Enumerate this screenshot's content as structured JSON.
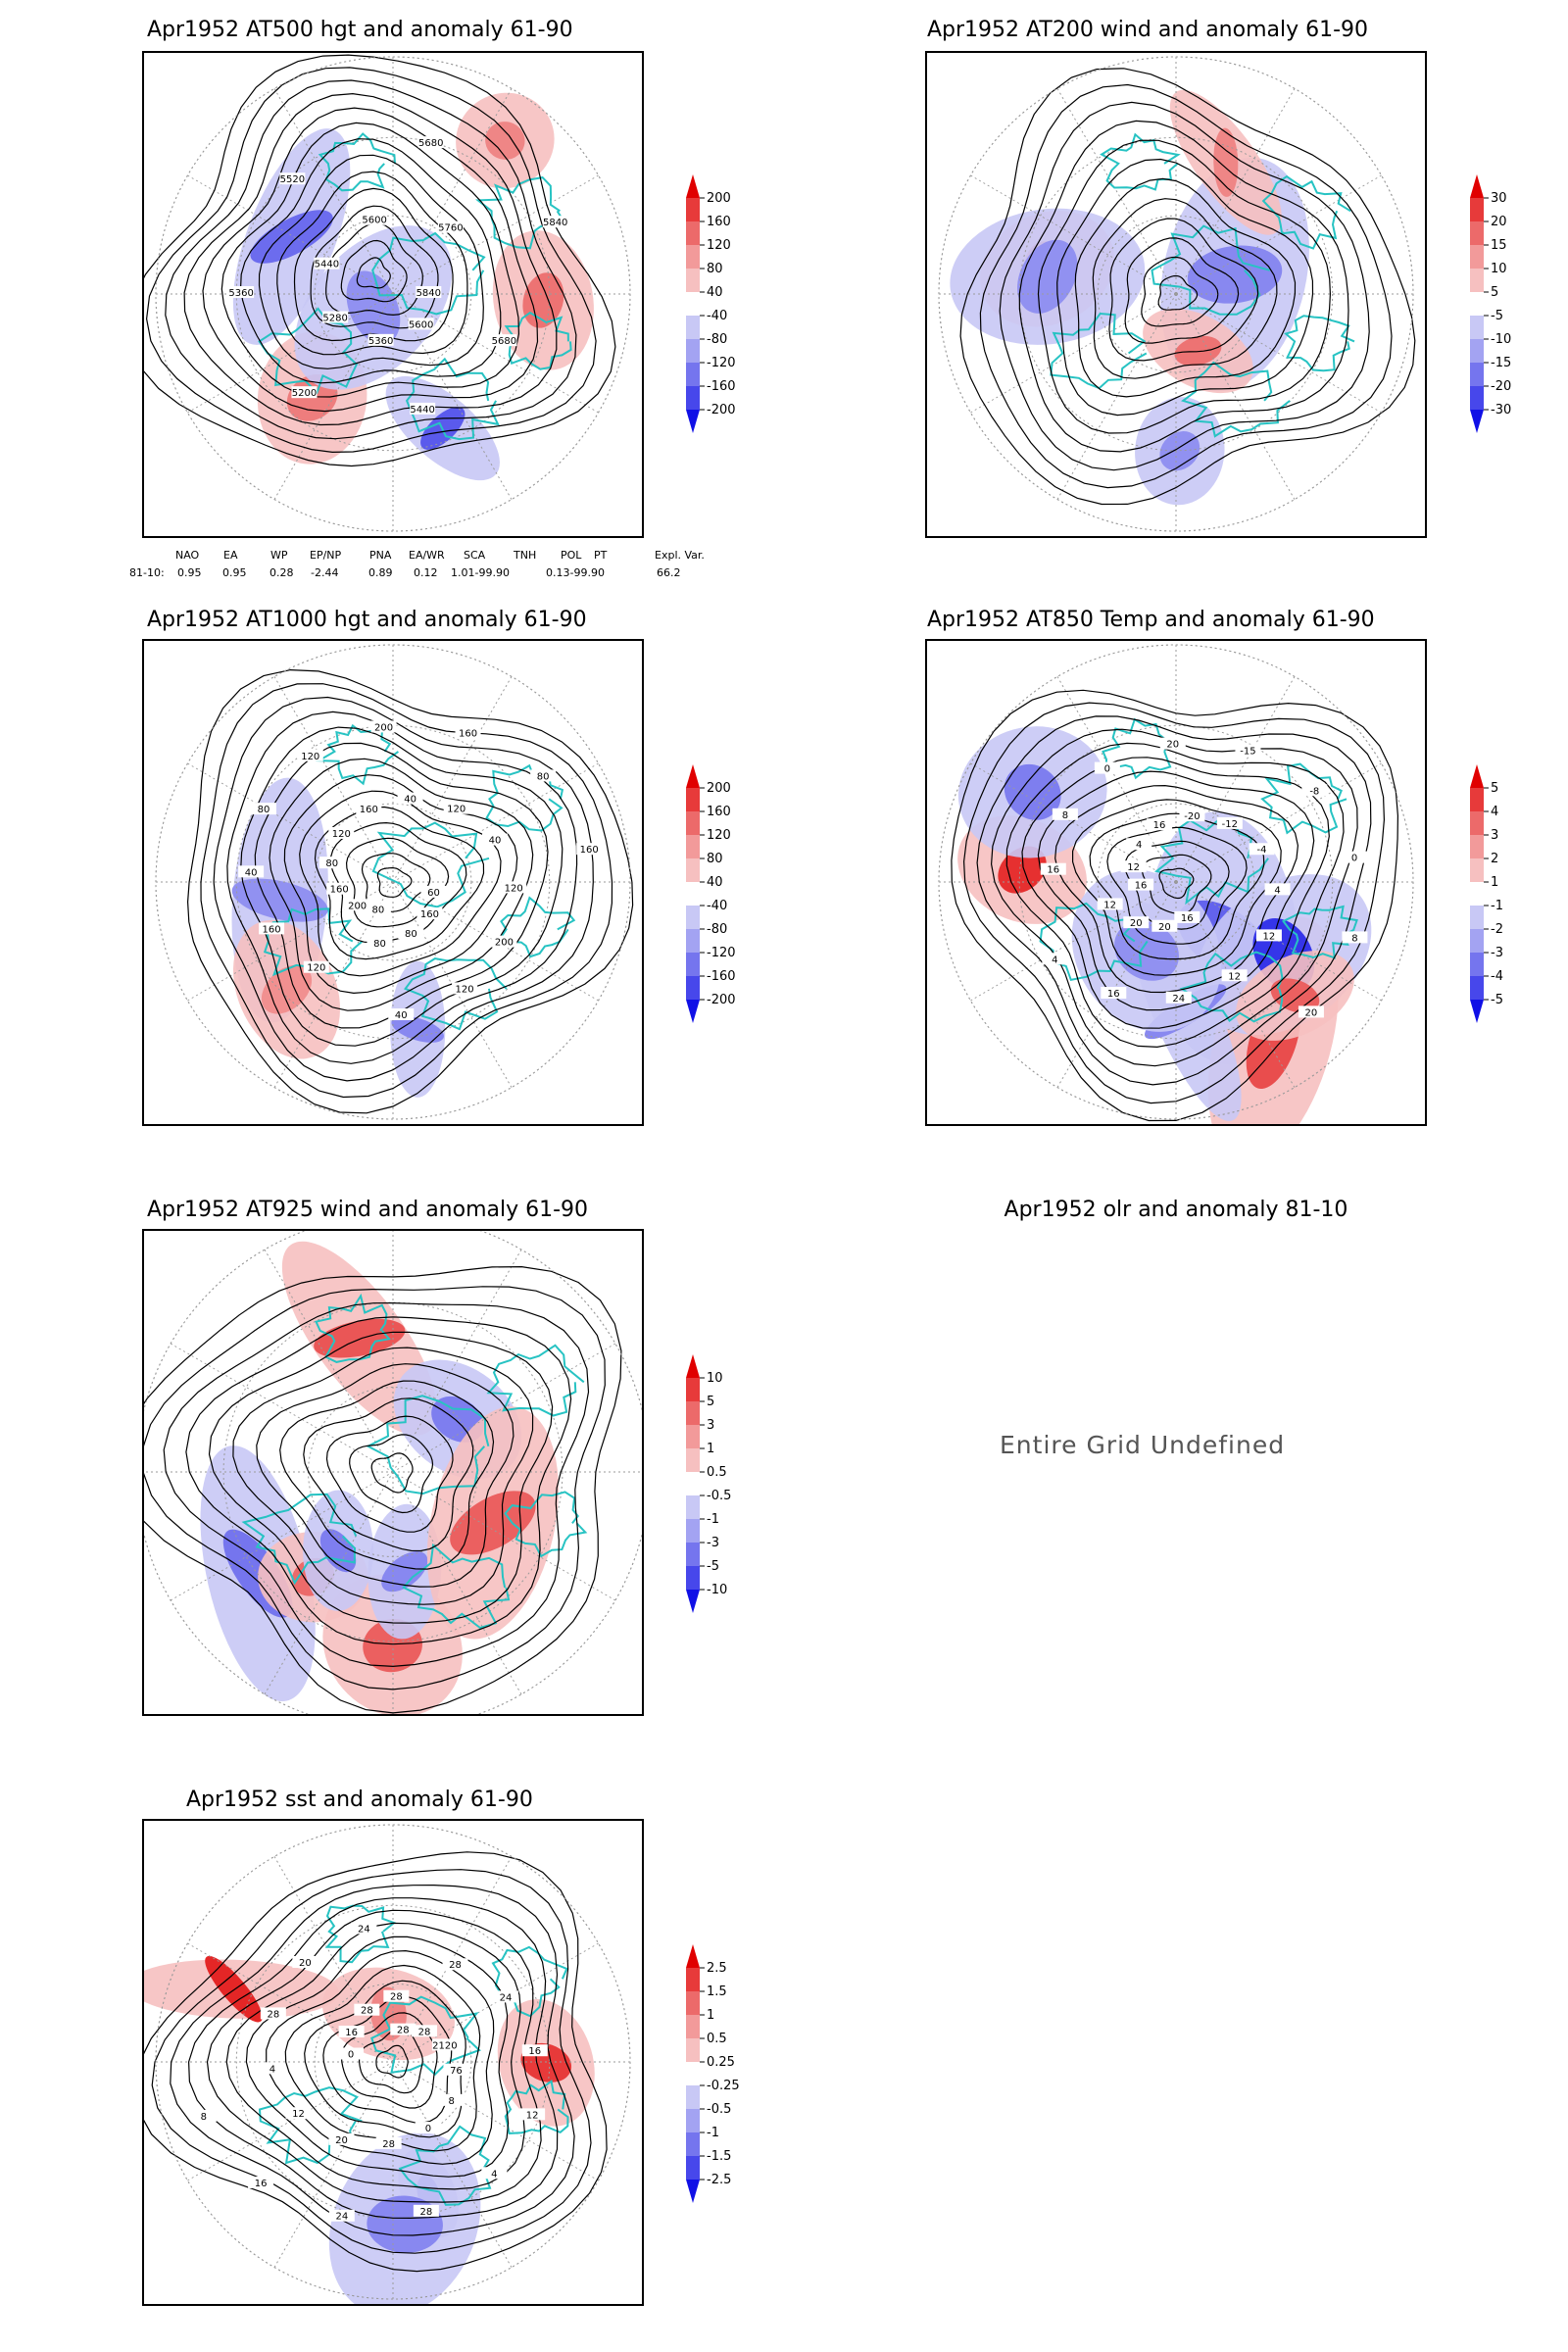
{
  "panels": [
    {
      "id": "p500",
      "title": "Apr1952 AT500 hgt and anomaly 61-90",
      "colorbar": [
        "200",
        "160",
        "120",
        "80",
        "40",
        "-40",
        "-80",
        "-120",
        "-160",
        "-200"
      ],
      "contour_labels": [
        "5840",
        "5680",
        "5600",
        "5440",
        "5360",
        "5200",
        "5280",
        "5360",
        "5440",
        "5520",
        "5600",
        "5680",
        "5760",
        "5840"
      ],
      "anomaly_blobs": [
        {
          "kind": "neg",
          "strength": 0.6
        },
        {
          "kind": "neg",
          "strength": 0.5
        },
        {
          "kind": "pos",
          "strength": 0.4
        },
        {
          "kind": "pos",
          "strength": 0.35
        },
        {
          "kind": "neg",
          "strength": 0.3
        },
        {
          "kind": "pos",
          "strength": 0.3
        }
      ]
    },
    {
      "id": "p200",
      "title": "Apr1952 AT200 wind and anomaly 61-90",
      "colorbar": [
        "30",
        "20",
        "15",
        "10",
        "5",
        "-5",
        "-10",
        "-15",
        "-20",
        "-30"
      ],
      "contour_labels": [],
      "anomaly_blobs": [
        {
          "kind": "pos",
          "strength": 0.45
        },
        {
          "kind": "neg",
          "strength": 0.35
        },
        {
          "kind": "pos",
          "strength": 0.4
        },
        {
          "kind": "neg",
          "strength": 0.3
        },
        {
          "kind": "pos",
          "strength": 0.3
        },
        {
          "kind": "neg",
          "strength": 0.3
        }
      ]
    },
    {
      "id": "p1000",
      "title": "Apr1952 AT1000 hgt and anomaly 61-90",
      "colorbar": [
        "200",
        "160",
        "120",
        "80",
        "40",
        "-40",
        "-80",
        "-120",
        "-160",
        "-200"
      ],
      "contour_labels": [
        "80",
        "120",
        "200",
        "160",
        "160",
        "40",
        "80",
        "80",
        "120",
        "120",
        "160",
        "200",
        "40",
        "160",
        "120",
        "80",
        "40",
        "160",
        "120",
        "60",
        "200",
        "160",
        "120",
        "80",
        "40",
        "80"
      ],
      "anomaly_blobs": [
        {
          "kind": "neg",
          "strength": 0.35
        },
        {
          "kind": "neg",
          "strength": 0.3
        },
        {
          "kind": "pos",
          "strength": 0.25
        }
      ]
    },
    {
      "id": "p850",
      "title": "Apr1952 AT850 Temp and anomaly 61-90",
      "colorbar": [
        "5",
        "4",
        "3",
        "2",
        "1",
        "-1",
        "-2",
        "-3",
        "-4",
        "-5"
      ],
      "contour_labels": [
        "16",
        "16",
        "12",
        "8",
        "4",
        "0",
        "16",
        "20",
        "-20",
        "-15",
        "-12",
        "-8",
        "-4",
        "0",
        "4",
        "8",
        "12",
        "20",
        "12",
        "16",
        "24",
        "20",
        "16",
        "20",
        "4",
        "12"
      ],
      "anomaly_blobs": [
        {
          "kind": "pos",
          "strength": 0.75
        },
        {
          "kind": "neg",
          "strength": 0.55
        },
        {
          "kind": "pos",
          "strength": 0.6
        },
        {
          "kind": "neg",
          "strength": 0.8
        },
        {
          "kind": "neg",
          "strength": 0.4
        },
        {
          "kind": "pos",
          "strength": 0.5
        },
        {
          "kind": "neg",
          "strength": 0.35
        },
        {
          "kind": "neg",
          "strength": 0.3
        }
      ]
    },
    {
      "id": "p925",
      "title": "Apr1952 AT925 wind and anomaly 61-90",
      "colorbar": [
        "10",
        "5",
        "3",
        "1",
        "0.5",
        "-0.5",
        "-1",
        "-3",
        "-5",
        "-10"
      ],
      "contour_labels": [],
      "anomaly_blobs": [
        {
          "kind": "pos",
          "strength": 0.5
        },
        {
          "kind": "neg",
          "strength": 0.45
        },
        {
          "kind": "pos",
          "strength": 0.55
        },
        {
          "kind": "neg",
          "strength": 0.4
        },
        {
          "kind": "pos",
          "strength": 0.45
        },
        {
          "kind": "neg",
          "strength": 0.35
        },
        {
          "kind": "pos",
          "strength": 0.5
        },
        {
          "kind": "neg",
          "strength": 0.4
        }
      ]
    },
    {
      "id": "psst",
      "title": "Apr1952 sst and anomaly 61-90",
      "colorbar": [
        "2.5",
        "1.5",
        "1",
        "0.5",
        "0.25",
        "-0.25",
        "-0.5",
        "-1",
        "-1.5",
        "-2.5"
      ],
      "contour_labels": [
        "28",
        "28",
        "28",
        "24",
        "2120",
        "16",
        "76",
        "12",
        "8",
        "4",
        "0",
        "28",
        "28",
        "24",
        "20",
        "16",
        "12",
        "8",
        "4",
        "0",
        "28",
        "16",
        "20",
        "28",
        "24",
        "28"
      ],
      "anomaly_blobs": [
        {
          "kind": "pos",
          "strength": 0.7
        },
        {
          "kind": "neg",
          "strength": 0.6
        },
        {
          "kind": "pos",
          "strength": 0.8
        },
        {
          "kind": "neg",
          "strength": 0.35
        },
        {
          "kind": "pos",
          "strength": 0.3
        }
      ]
    }
  ],
  "olr": {
    "title": "Apr1952 olr and anomaly 81-10",
    "message": "Entire Grid Undefined"
  },
  "indices": {
    "headers": [
      "NAO",
      "EA",
      "WP",
      "EP/NP",
      "PNA",
      "EA/WR",
      "SCA",
      "TNH",
      "POL",
      "PT",
      "Expl. Var."
    ],
    "row_label": "81-10:",
    "values": [
      "0.95",
      "0.95",
      "0.28",
      "-2.44",
      "0.89",
      "0.12",
      "1.01-99.90",
      "0.13-99.90",
      "66.2"
    ]
  },
  "colors": {
    "coast": "#27c3c3",
    "contour": "#000000",
    "pos_strong": "#e00000",
    "pos_weak": "#f6c0c0",
    "neg_strong": "#1010e6",
    "neg_weak": "#c8c8f5",
    "grid": "#9a9a9a"
  }
}
